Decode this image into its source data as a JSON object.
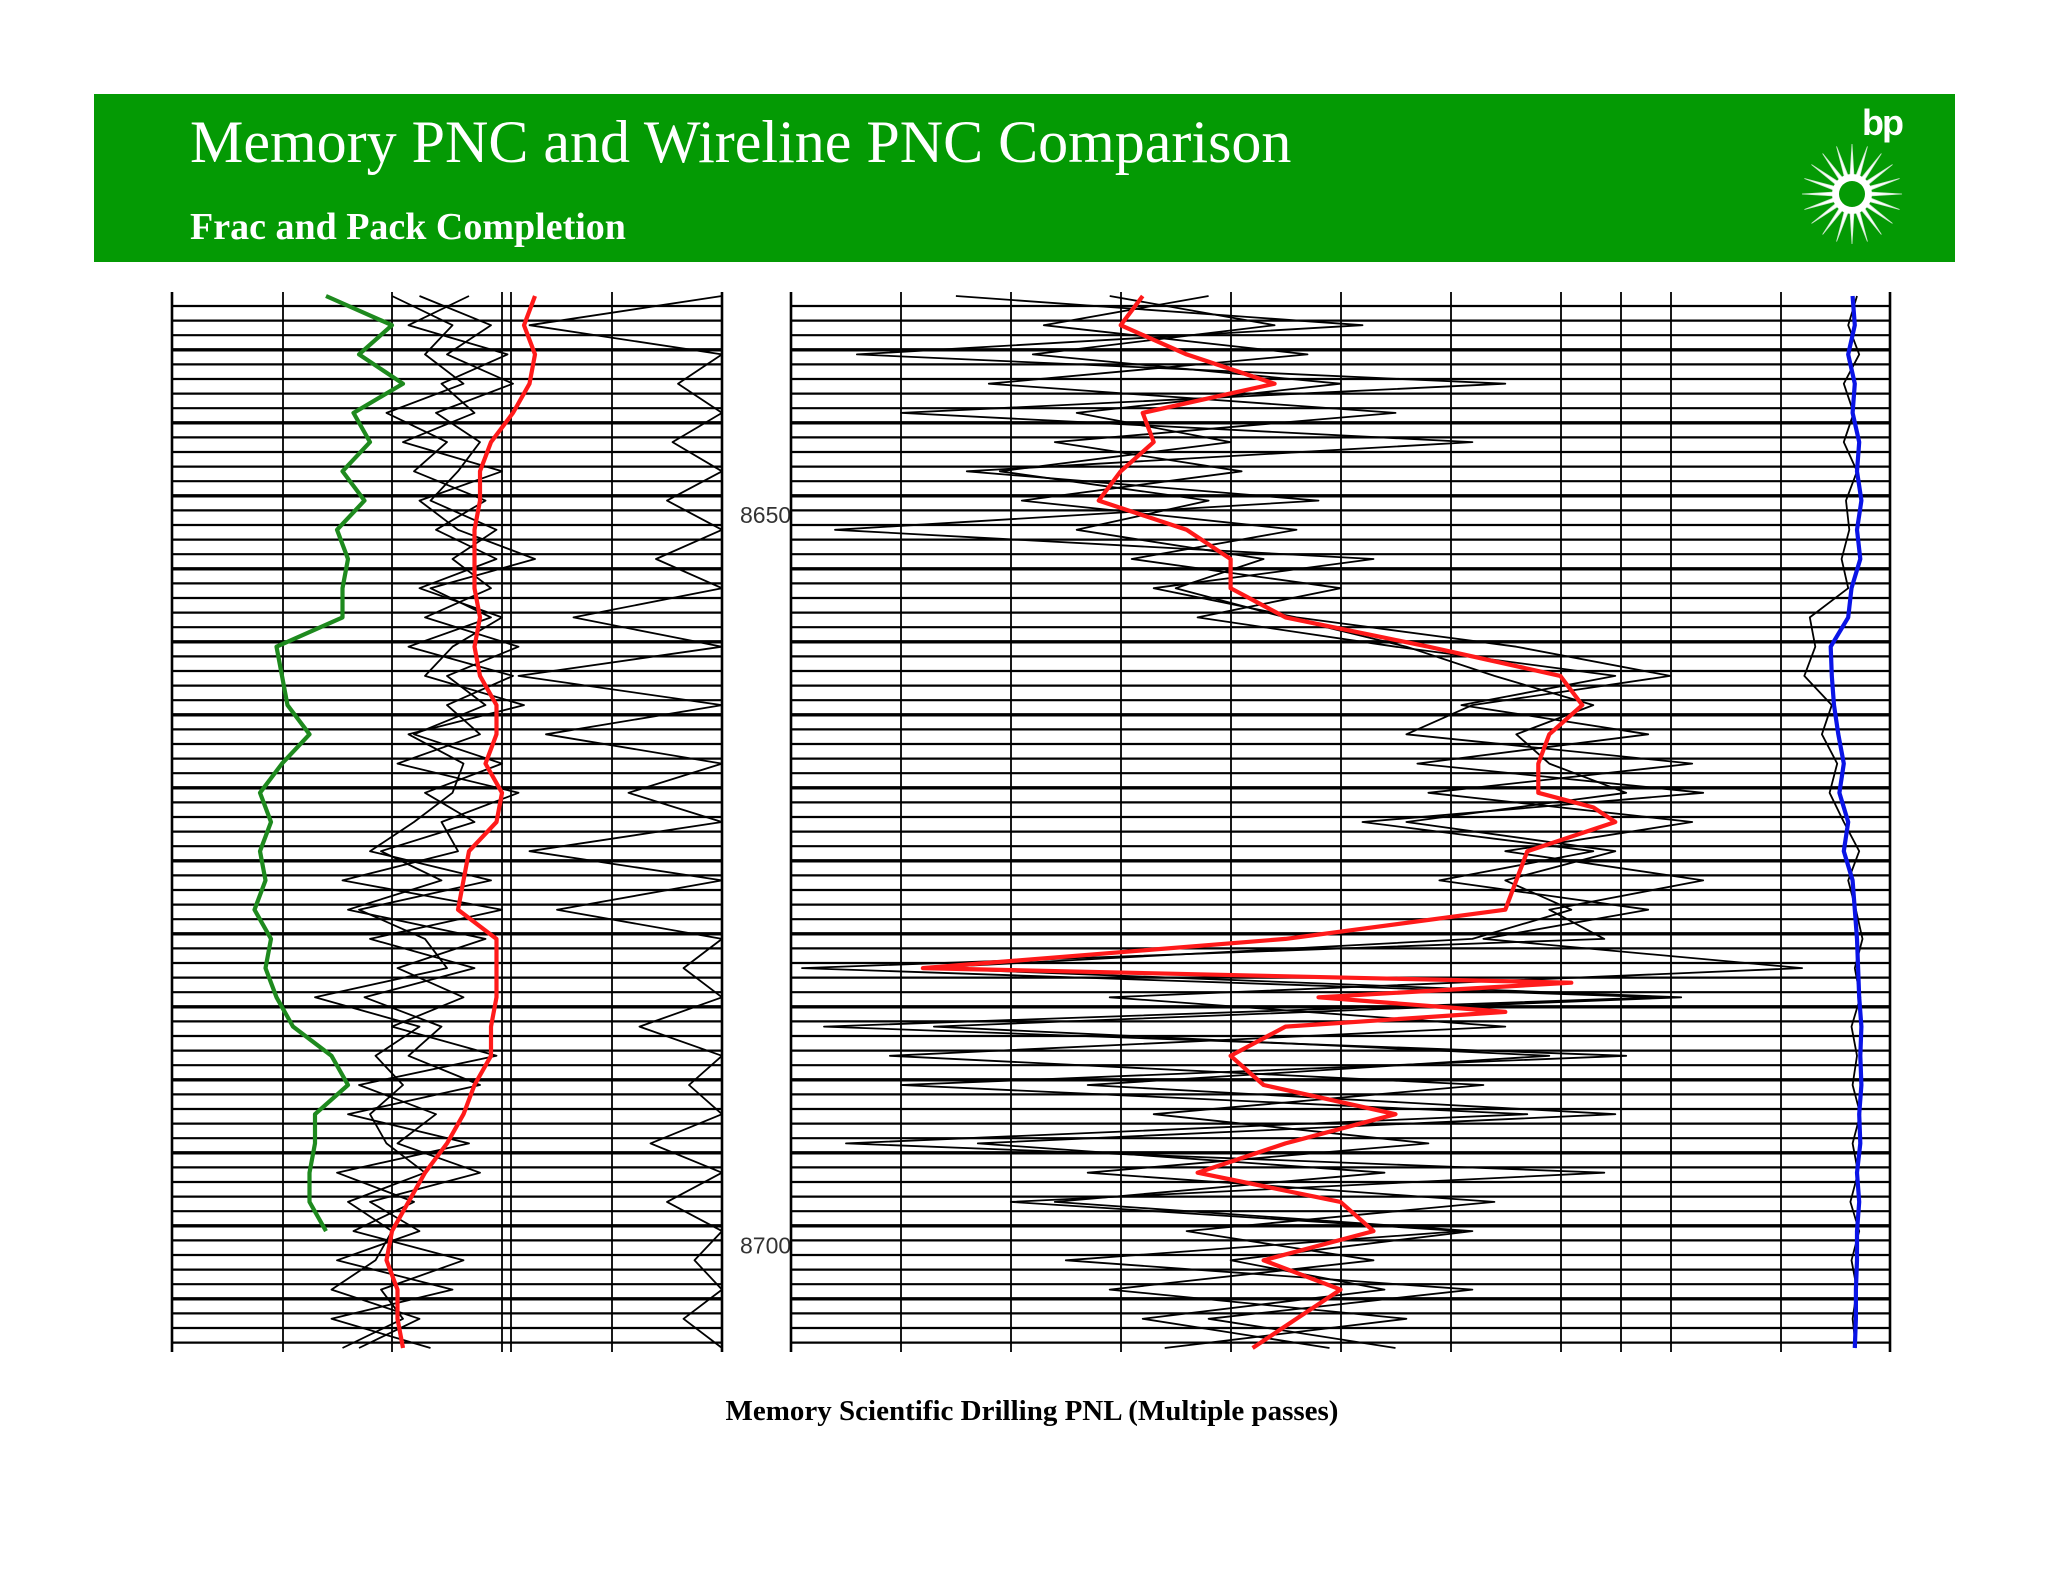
{
  "header": {
    "title": "Memory PNC and Wireline PNC Comparison",
    "subtitle": "Frac and Pack Completion",
    "logo_text": "bp",
    "banner_color": "#049A04"
  },
  "caption": "Memory Scientific Drilling PNL (Multiple passes)",
  "colors": {
    "green_curve": "#1E8A1E",
    "red_curve": "#FF1A1A",
    "blue_curve": "#0A14E6",
    "black_curve": "#000000",
    "logo_sun": "#ffffff",
    "logo_core": "#049A04"
  },
  "icons": {
    "logo": "bp-helios-logo"
  },
  "chart_data": [
    {
      "type": "line",
      "title": "",
      "ylabel": "",
      "xlabel": "",
      "y_axis": "depth",
      "ylim": [
        8635,
        8707
      ],
      "depth_ticks": [
        8650,
        8700
      ],
      "grid": true,
      "xlim": [
        0,
        10
      ],
      "series": [
        {
          "name": "",
          "color": "#1E8A1E",
          "depth": [
            8635,
            8637,
            8639,
            8641,
            8643,
            8645,
            8647,
            8649,
            8651,
            8653,
            8655,
            8657,
            8659,
            8661,
            8663,
            8665,
            8667,
            8669,
            8671,
            8673,
            8675,
            8677,
            8679,
            8681,
            8683,
            8685,
            8687,
            8689,
            8691,
            8693,
            8695,
            8697,
            8699
          ],
          "values": [
            2.8,
            4.0,
            3.4,
            4.2,
            3.3,
            3.6,
            3.1,
            3.5,
            3.0,
            3.2,
            3.1,
            3.1,
            1.9,
            2.0,
            2.1,
            2.5,
            2.0,
            1.6,
            1.8,
            1.6,
            1.7,
            1.5,
            1.8,
            1.7,
            1.9,
            2.2,
            2.9,
            3.2,
            2.6,
            2.6,
            2.5,
            2.5,
            2.8
          ]
        },
        {
          "name": "",
          "color": "#FF1A1A",
          "depth": [
            8635,
            8637,
            8639,
            8641,
            8643,
            8645,
            8647,
            8649,
            8651,
            8653,
            8655,
            8657,
            8659,
            8661,
            8663,
            8665,
            8667,
            8669,
            8671,
            8673,
            8675,
            8677,
            8679,
            8681,
            8683,
            8685,
            8687,
            8689,
            8691,
            8693,
            8695,
            8697,
            8699,
            8701,
            8703,
            8705,
            8707
          ],
          "values": [
            6.6,
            6.4,
            6.6,
            6.5,
            6.2,
            5.8,
            5.6,
            5.6,
            5.5,
            5.5,
            5.5,
            5.6,
            5.5,
            5.6,
            5.9,
            5.9,
            5.7,
            6.0,
            5.9,
            5.4,
            5.3,
            5.2,
            5.9,
            5.9,
            5.9,
            5.8,
            5.8,
            5.5,
            5.3,
            5.0,
            4.6,
            4.3,
            4.0,
            3.9,
            4.1,
            4.1,
            4.2
          ]
        },
        {
          "name": "",
          "color": "#000000",
          "depth": [
            8635,
            8637,
            8639,
            8641,
            8643,
            8645,
            8647,
            8649,
            8651,
            8653,
            8655,
            8657,
            8659,
            8661,
            8663,
            8665,
            8667,
            8669,
            8671,
            8673,
            8675,
            8677,
            8679,
            8681,
            8683,
            8685,
            8687,
            8689,
            8691,
            8693,
            8695,
            8697,
            8699,
            8701,
            8703,
            8705,
            8707
          ],
          "values": [
            10.0,
            6.5,
            10.0,
            9.2,
            10.0,
            9.1,
            10.0,
            9.0,
            10.0,
            8.8,
            10.0,
            7.3,
            10.0,
            6.3,
            10.0,
            6.8,
            10.0,
            8.3,
            10.0,
            6.5,
            10.0,
            7.0,
            10.0,
            9.3,
            10.0,
            8.5,
            10.0,
            9.4,
            10.0,
            8.7,
            10.0,
            9.0,
            10.0,
            9.5,
            10.0,
            9.3,
            10.0
          ]
        },
        {
          "name": "",
          "color": "#000000",
          "depth": [
            8635,
            8637,
            8639,
            8641,
            8643,
            8645,
            8647,
            8649,
            8651,
            8653,
            8655,
            8657,
            8659,
            8661,
            8663,
            8665,
            8667,
            8669,
            8671,
            8673,
            8675,
            8677,
            8679,
            8681,
            8683,
            8685,
            8687,
            8689,
            8691,
            8693,
            8695,
            8697,
            8699,
            8701,
            8703,
            8705,
            8707
          ],
          "values": [
            4.5,
            5.8,
            5.0,
            6.2,
            4.8,
            5.6,
            5.2,
            4.7,
            5.9,
            5.1,
            5.8,
            4.6,
            6.3,
            5.0,
            5.7,
            4.4,
            6.0,
            4.6,
            5.5,
            3.8,
            4.9,
            3.2,
            5.7,
            4.1,
            5.3,
            4.0,
            5.9,
            3.4,
            4.8,
            4.1,
            5.6,
            3.6,
            4.5,
            3.0,
            5.1,
            2.9,
            4.7
          ]
        },
        {
          "name": "",
          "color": "#000000",
          "depth": [
            8635,
            8637,
            8639,
            8641,
            8643,
            8645,
            8647,
            8649,
            8651,
            8653,
            8655,
            8657,
            8659,
            8661,
            8663,
            8665,
            8667,
            8669,
            8671,
            8673,
            8675,
            8677,
            8679,
            8681,
            8683,
            8685,
            8687,
            8689,
            8691,
            8693,
            8695,
            8697,
            8699,
            8701,
            8703,
            8705,
            8707
          ],
          "values": [
            5.4,
            4.3,
            6.1,
            4.9,
            5.5,
            4.2,
            6.0,
            4.5,
            5.2,
            6.6,
            4.7,
            5.8,
            4.3,
            6.2,
            5.0,
            5.6,
            4.1,
            6.3,
            4.9,
            5.2,
            3.1,
            6.0,
            3.6,
            5.5,
            3.5,
            4.9,
            4.3,
            5.6,
            3.2,
            5.4,
            3.0,
            4.4,
            3.3,
            5.3,
            3.8,
            4.2,
            3.1
          ]
        },
        {
          "name": "",
          "color": "#000000",
          "depth": [
            8635,
            8637,
            8639,
            8641,
            8643,
            8645,
            8647,
            8649,
            8651,
            8653,
            8655,
            8657,
            8659,
            8661,
            8663,
            8665,
            8667,
            8669,
            8671,
            8673,
            8675,
            8677,
            8679,
            8681,
            8683,
            8685,
            8687,
            8689,
            8691,
            8693,
            8695,
            8697,
            8699,
            8701,
            8703,
            8705,
            8707
          ],
          "values": [
            4.0,
            5.1,
            4.6,
            5.3,
            3.9,
            5.0,
            4.4,
            5.7,
            4.8,
            5.9,
            4.5,
            6.0,
            5.1,
            4.6,
            6.4,
            4.3,
            5.3,
            5.1,
            4.4,
            3.6,
            5.8,
            3.4,
            4.6,
            5.0,
            2.6,
            4.5,
            3.7,
            4.2,
            3.6,
            3.9,
            4.6,
            3.2,
            4.0,
            3.7,
            2.9,
            4.5,
            3.4
          ]
        }
      ]
    },
    {
      "type": "line",
      "title": "",
      "ylabel": "",
      "xlabel": "",
      "y_axis": "depth",
      "ylim": [
        8635,
        8707
      ],
      "grid": true,
      "xlim": [
        0,
        10
      ],
      "series": [
        {
          "name": "",
          "color": "#FF1A1A",
          "depth": [
            8635,
            8637,
            8639,
            8641,
            8643,
            8645,
            8647,
            8649,
            8651,
            8653,
            8655,
            8657,
            8659,
            8661,
            8663,
            8665,
            8667,
            8669,
            8670,
            8671,
            8672,
            8673,
            8675,
            8677,
            8679,
            8681,
            8682,
            8683,
            8684,
            8685,
            8687,
            8689,
            8691,
            8693,
            8695,
            8697,
            8699,
            8701,
            8703,
            8705,
            8707
          ],
          "values": [
            3.2,
            3.0,
            3.6,
            4.4,
            3.2,
            3.3,
            3.0,
            2.8,
            3.6,
            4.0,
            4.0,
            4.5,
            5.8,
            7.0,
            7.2,
            6.9,
            6.8,
            6.8,
            7.3,
            7.5,
            7.1,
            6.7,
            6.6,
            6.5,
            4.5,
            1.2,
            7.1,
            4.8,
            6.5,
            4.5,
            4.0,
            4.3,
            5.5,
            4.5,
            3.7,
            5.0,
            5.3,
            4.3,
            5.0,
            4.6,
            4.2
          ]
        },
        {
          "name": "",
          "color": "#000000",
          "depth": [
            8635,
            8637,
            8639,
            8641,
            8643,
            8645,
            8647,
            8649,
            8651,
            8653,
            8655,
            8657,
            8659,
            8661,
            8663,
            8665,
            8667,
            8669,
            8671,
            8673,
            8675,
            8677,
            8679,
            8681,
            8683,
            8685,
            8687,
            8689,
            8691,
            8693,
            8695,
            8697,
            8699,
            8701,
            8703,
            8705,
            8707
          ],
          "values": [
            1.5,
            5.2,
            0.6,
            6.5,
            1.0,
            6.2,
            1.6,
            4.8,
            0.4,
            5.3,
            3.3,
            4.6,
            6.6,
            8.0,
            6.2,
            5.6,
            8.2,
            5.8,
            8.2,
            6.5,
            8.3,
            6.9,
            7.4,
            0.1,
            7.9,
            0.3,
            7.6,
            1.0,
            6.7,
            0.5,
            7.4,
            2.0,
            6.1,
            2.5,
            6.2,
            3.8,
            5.5
          ]
        },
        {
          "name": "",
          "color": "#000000",
          "depth": [
            8635,
            8637,
            8639,
            8641,
            8643,
            8645,
            8647,
            8649,
            8651,
            8653,
            8655,
            8657,
            8659,
            8661,
            8663,
            8665,
            8667,
            8669,
            8671,
            8673,
            8675,
            8677,
            8679,
            8681,
            8683,
            8685,
            8687,
            8689,
            8691,
            8693,
            8695,
            8697,
            8699,
            8701,
            8703,
            8705,
            8707
          ],
          "values": [
            3.8,
            2.3,
            4.7,
            1.8,
            5.5,
            2.4,
            4.1,
            2.1,
            4.6,
            3.1,
            5.0,
            3.7,
            5.5,
            7.5,
            6.1,
            7.8,
            5.7,
            8.3,
            5.2,
            7.3,
            5.9,
            7.8,
            6.3,
            9.2,
            2.9,
            6.5,
            0.9,
            6.3,
            3.3,
            5.8,
            2.7,
            6.4,
            3.6,
            5.3,
            2.9,
            5.6,
            3.4
          ]
        },
        {
          "name": "",
          "color": "#000000",
          "depth": [
            8635,
            8637,
            8639,
            8641,
            8643,
            8645,
            8647,
            8649,
            8651,
            8653,
            8655,
            8657,
            8659,
            8661,
            8663,
            8665,
            8667,
            8669,
            8671,
            8673,
            8675,
            8677,
            8679,
            8681,
            8683,
            8685,
            8687,
            8689,
            8691,
            8693,
            8695,
            8697,
            8699,
            8701,
            8703,
            8705,
            8707
          ],
          "values": [
            2.9,
            4.4,
            2.2,
            5.0,
            2.6,
            4.0,
            1.9,
            3.8,
            2.6,
            4.3,
            3.5,
            4.5,
            5.6,
            6.4,
            7.3,
            6.6,
            6.9,
            7.6,
            5.6,
            7.5,
            6.5,
            7.1,
            6.2,
            1.2,
            8.1,
            1.3,
            6.9,
            2.7,
            7.5,
            1.7,
            5.4,
            2.4,
            6.2,
            4.0,
            5.4,
            3.2,
            4.9
          ]
        },
        {
          "name": "",
          "color": "#0A14E6",
          "depth": [
            8635,
            8637,
            8639,
            8641,
            8643,
            8645,
            8647,
            8649,
            8651,
            8653,
            8655,
            8657,
            8659,
            8661,
            8663,
            8665,
            8667,
            8669,
            8671,
            8673,
            8675,
            8677,
            8679,
            8681,
            8683,
            8685,
            8687,
            8689,
            8691,
            8693,
            8695,
            8697,
            8699,
            8701,
            8703,
            8705,
            8707
          ],
          "values": [
            9.66,
            9.68,
            9.62,
            9.68,
            9.66,
            9.72,
            9.7,
            9.74,
            9.7,
            9.73,
            9.65,
            9.62,
            9.46,
            9.47,
            9.49,
            9.53,
            9.58,
            9.54,
            9.62,
            9.58,
            9.66,
            9.68,
            9.7,
            9.71,
            9.72,
            9.74,
            9.73,
            9.74,
            9.72,
            9.73,
            9.7,
            9.72,
            9.7,
            9.7,
            9.69,
            9.69,
            9.68
          ]
        },
        {
          "name": "",
          "color": "#000000",
          "depth": [
            8635,
            8637,
            8639,
            8641,
            8643,
            8645,
            8647,
            8649,
            8651,
            8653,
            8655,
            8657,
            8659,
            8661,
            8663,
            8665,
            8667,
            8669,
            8671,
            8673,
            8675,
            8677,
            8679,
            8681,
            8683,
            8685,
            8687,
            8689,
            8691,
            8693,
            8695,
            8697,
            8699,
            8701,
            8703,
            8705,
            8707
          ],
          "values": [
            9.7,
            9.62,
            9.72,
            9.58,
            9.67,
            9.58,
            9.7,
            9.6,
            9.63,
            9.56,
            9.62,
            9.27,
            9.32,
            9.22,
            9.47,
            9.38,
            9.52,
            9.45,
            9.58,
            9.72,
            9.62,
            9.69,
            9.75,
            9.68,
            9.73,
            9.65,
            9.7,
            9.66,
            9.73,
            9.66,
            9.71,
            9.64,
            9.72,
            9.65,
            9.7,
            9.66,
            9.69
          ]
        }
      ]
    }
  ]
}
